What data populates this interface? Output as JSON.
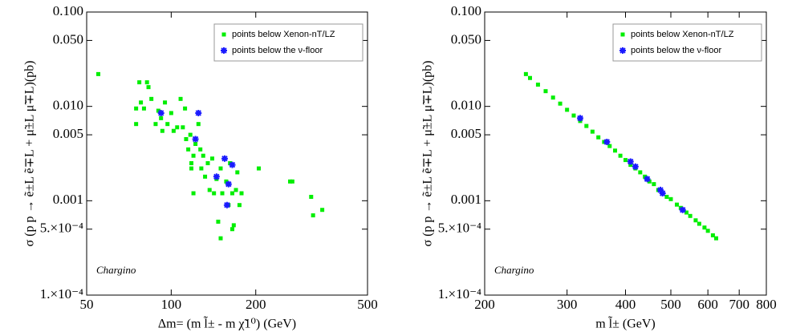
{
  "chart_data": [
    {
      "type": "scatter",
      "xscale": "log",
      "yscale": "log",
      "legend": "upper right",
      "xlabel": "Δm= (m l̃± - m χ̃1⁰) (GeV)",
      "ylabel": "σ (p p → ẽ±L ẽ∓L + μ̃±L μ̃∓L)(pb)",
      "annotation": "Chargino",
      "xlim": [
        50,
        500
      ],
      "ylim": [
        0.0001,
        0.1
      ],
      "xticks": [
        50,
        100,
        200,
        500
      ],
      "yticks": [
        {
          "value": 0.1,
          "label": "0.100"
        },
        {
          "value": 0.05,
          "label": "0.050"
        },
        {
          "value": 0.01,
          "label": "0.010"
        },
        {
          "value": 0.005,
          "label": "0.005"
        },
        {
          "value": 0.001,
          "label": "0.001"
        },
        {
          "value": 0.0005,
          "label": "5.×10⁻⁴"
        },
        {
          "value": 0.0001,
          "label": "1.×10⁻⁴"
        }
      ],
      "series": [
        {
          "name": "points below Xenon-nT/LZ",
          "color": "#00ee00",
          "marker": "square",
          "x": [
            55,
            75,
            75,
            77,
            78,
            80,
            82,
            83,
            85,
            88,
            90,
            92,
            93,
            95,
            97,
            100,
            102,
            105,
            108,
            110,
            112,
            113,
            115,
            117,
            118,
            120,
            122,
            125,
            127,
            128,
            130,
            132,
            135,
            137,
            140,
            142,
            145,
            147,
            150,
            152,
            155,
            157,
            160,
            162,
            165,
            167,
            170,
            172,
            175,
            178,
            205,
            265,
            270,
            315,
            320,
            345,
            165,
            150,
            120,
            118
          ],
          "values": [
            0.022,
            0.0095,
            0.0065,
            0.018,
            0.011,
            0.0095,
            0.018,
            0.016,
            0.012,
            0.0065,
            0.009,
            0.0075,
            0.0055,
            0.011,
            0.0065,
            0.0085,
            0.0055,
            0.006,
            0.012,
            0.006,
            0.0095,
            0.0045,
            0.0035,
            0.005,
            0.0025,
            0.003,
            0.004,
            0.0065,
            0.0035,
            0.0022,
            0.003,
            0.0018,
            0.0025,
            0.0013,
            0.0028,
            0.0012,
            0.0017,
            0.0006,
            0.0022,
            0.0012,
            0.0028,
            0.0016,
            0.0009,
            0.0025,
            0.0012,
            0.00055,
            0.0013,
            0.002,
            0.0009,
            0.0012,
            0.0022,
            0.0016,
            0.0016,
            0.0011,
            0.0007,
            0.0008,
            0.0005,
            0.0004,
            0.0012,
            0.0022
          ]
        },
        {
          "name": "points below the ν-floor",
          "color": "#1a1aff",
          "marker": "star",
          "x": [
            92,
            122,
            125,
            145,
            155,
            160,
            165,
            158
          ],
          "values": [
            0.0085,
            0.0045,
            0.0085,
            0.0018,
            0.0028,
            0.0015,
            0.0024,
            0.0009
          ]
        }
      ]
    },
    {
      "type": "scatter",
      "xscale": "log",
      "yscale": "log",
      "legend": "upper right",
      "xlabel": "m l̃± (GeV)",
      "ylabel": "σ (p p → ẽ±L ẽ∓L + μ̃±L μ̃∓L)(pb)",
      "annotation": "Chargino",
      "xlim": [
        200,
        800
      ],
      "ylim": [
        0.0001,
        0.1
      ],
      "xticks": [
        200,
        300,
        400,
        500,
        600,
        700,
        800
      ],
      "yticks": [
        {
          "value": 0.1,
          "label": "0.100"
        },
        {
          "value": 0.05,
          "label": "0.050"
        },
        {
          "value": 0.01,
          "label": "0.010"
        },
        {
          "value": 0.005,
          "label": "0.005"
        },
        {
          "value": 0.001,
          "label": "0.001"
        },
        {
          "value": 0.0005,
          "label": "5.×10⁻⁴"
        },
        {
          "value": 0.0001,
          "label": "1.×10⁻⁴"
        }
      ],
      "series": [
        {
          "name": "points below Xenon-nT/LZ",
          "color": "#00ee00",
          "marker": "square",
          "x": [
            245,
            250,
            260,
            270,
            280,
            290,
            300,
            310,
            320,
            330,
            340,
            350,
            360,
            370,
            380,
            390,
            400,
            410,
            420,
            430,
            440,
            450,
            460,
            470,
            480,
            490,
            500,
            515,
            525,
            540,
            550,
            565,
            575,
            590,
            600,
            615,
            625
          ],
          "values": [
            0.022,
            0.02,
            0.017,
            0.0145,
            0.0124,
            0.0107,
            0.0092,
            0.008,
            0.007,
            0.0062,
            0.0054,
            0.0047,
            0.0042,
            0.0038,
            0.0034,
            0.003,
            0.0027,
            0.0024,
            0.0022,
            0.002,
            0.0018,
            0.0016,
            0.0015,
            0.0013,
            0.0012,
            0.0011,
            0.00104,
            0.00091,
            0.00084,
            0.00075,
            0.00069,
            0.00062,
            0.00057,
            0.00052,
            0.00048,
            0.00043,
            0.0004
          ]
        },
        {
          "name": "points below the ν-floor",
          "color": "#1a1aff",
          "marker": "star",
          "x": [
            320,
            365,
            410,
            420,
            445,
            475,
            480,
            530
          ],
          "values": [
            0.0075,
            0.0042,
            0.0026,
            0.0023,
            0.0017,
            0.0013,
            0.0012,
            0.0008
          ]
        }
      ]
    }
  ]
}
